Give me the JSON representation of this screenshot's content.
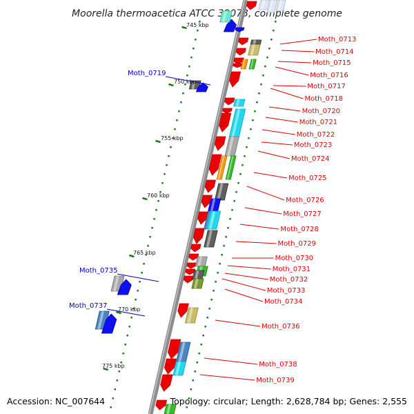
{
  "title": "Moorella thermoacetica ATCC 39073, complete genome",
  "accession": "Accession: NC_007644",
  "topology": "Topology: circular; Length: 2,628,784 bp; Genes: 2,555",
  "colors": {
    "forward_label": "#dd0000",
    "reverse_label": "#0000bb",
    "backbone": "#8c8c8c",
    "tick": "#1a7a1a",
    "red": "#ee0000",
    "blue": "#1010ee",
    "cyan": "#22d8ee",
    "gray": "#a8a8a8",
    "darkgray": "#606060",
    "khaki": "#c8bc6a",
    "orange": "#f29a12",
    "green": "#3aba2c",
    "olive": "#7a9a32",
    "steel": "#4a86c0",
    "teal": "#6ee8cc",
    "pale": "#dde6f2"
  },
  "scale_labels": [
    "745 kbp",
    "750 kbp",
    "755 kbp",
    "760 kbp",
    "765 kbp",
    "770 kbp",
    "775 kbp"
  ],
  "forward_genes": [
    "Moth_0713",
    "Moth_0714",
    "Moth_0715",
    "Moth_0716",
    "Moth_0717",
    "Moth_0718",
    "Moth_0720",
    "Moth_0721",
    "Moth_0722",
    "Moth_0723",
    "Moth_0724",
    "Moth_0725",
    "Moth_0726",
    "Moth_0727",
    "Moth_0728",
    "Moth_0729",
    "Moth_0730",
    "Moth_0731",
    "Moth_0732",
    "Moth_0733",
    "Moth_0734",
    "Moth_0736",
    "Moth_0738",
    "Moth_0739"
  ],
  "reverse_genes": [
    "Moth_0719",
    "Moth_0735",
    "Moth_0737"
  ]
}
